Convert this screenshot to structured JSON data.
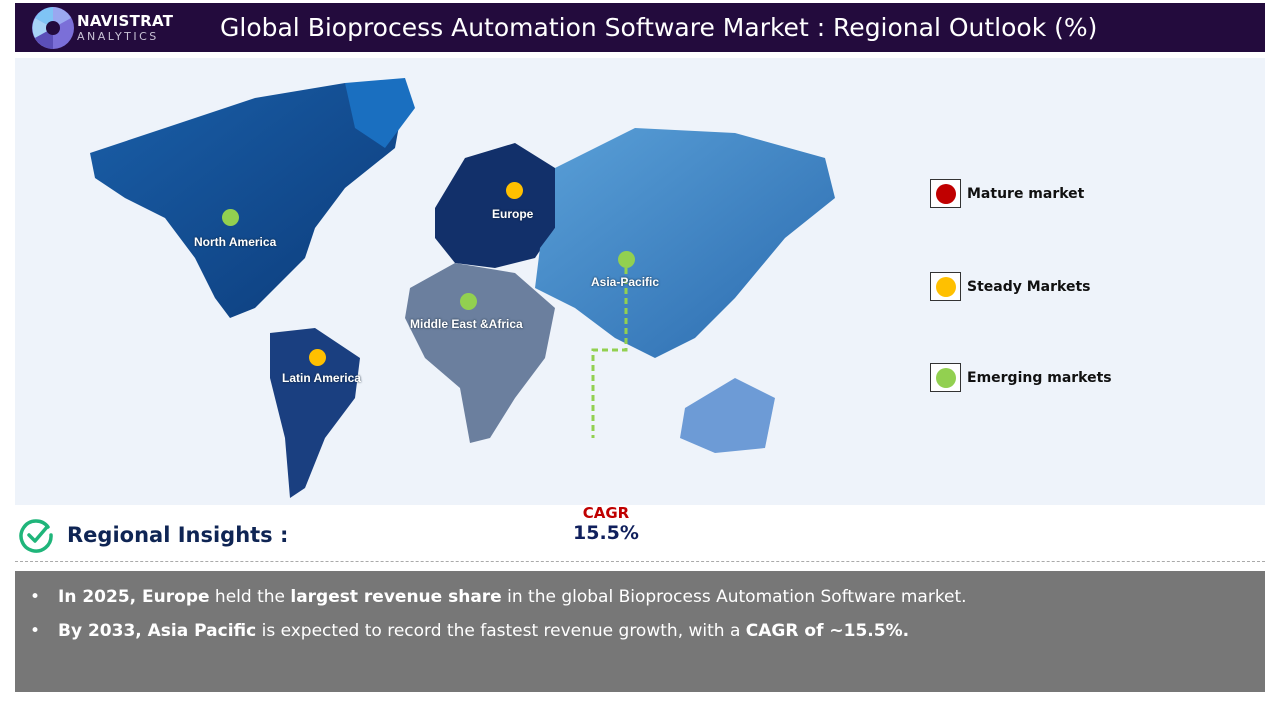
{
  "header": {
    "brand": "NAVISTRAT",
    "brand_sub": "ANALYTICS",
    "title": "Global Bioprocess Automation Software Market : Regional Outlook (%)"
  },
  "colors": {
    "header_bg": "#230b3d",
    "mature": "#c00000",
    "steady": "#ffc000",
    "emerging": "#92d050",
    "insight_title": "#0f2554",
    "cagr_label": "#c00000",
    "cagr_value": "#0f1f5c"
  },
  "regions": [
    {
      "name": "North America",
      "status": "emerging"
    },
    {
      "name": "Europe",
      "status": "steady"
    },
    {
      "name": "Asia-Pacific",
      "status": "emerging"
    },
    {
      "name": "Middle East &Africa",
      "status": "emerging"
    },
    {
      "name": "Latin America",
      "status": "steady"
    }
  ],
  "legend": [
    {
      "label": "Mature market",
      "icon": "red-dot"
    },
    {
      "label": "Steady Markets",
      "icon": "yellow-dot"
    },
    {
      "label": "Emerging markets",
      "icon": "green-dot"
    }
  ],
  "cagr": {
    "label": "CAGR",
    "value": "15.5%"
  },
  "insights": {
    "title": "Regional Insights :",
    "icon": "check-circle-icon",
    "b1": {
      "p1": "In 2025, Europe",
      "p2": " held the ",
      "p3": "largest revenue share",
      "p4": " in the global Bioprocess Automation Software market."
    },
    "b2": {
      "p1": "By 2033, Asia Pacific",
      "p2": " is expected to record the fastest revenue growth",
      "p3": ", with a ",
      "p4": "CAGR of ~15.5%."
    }
  }
}
